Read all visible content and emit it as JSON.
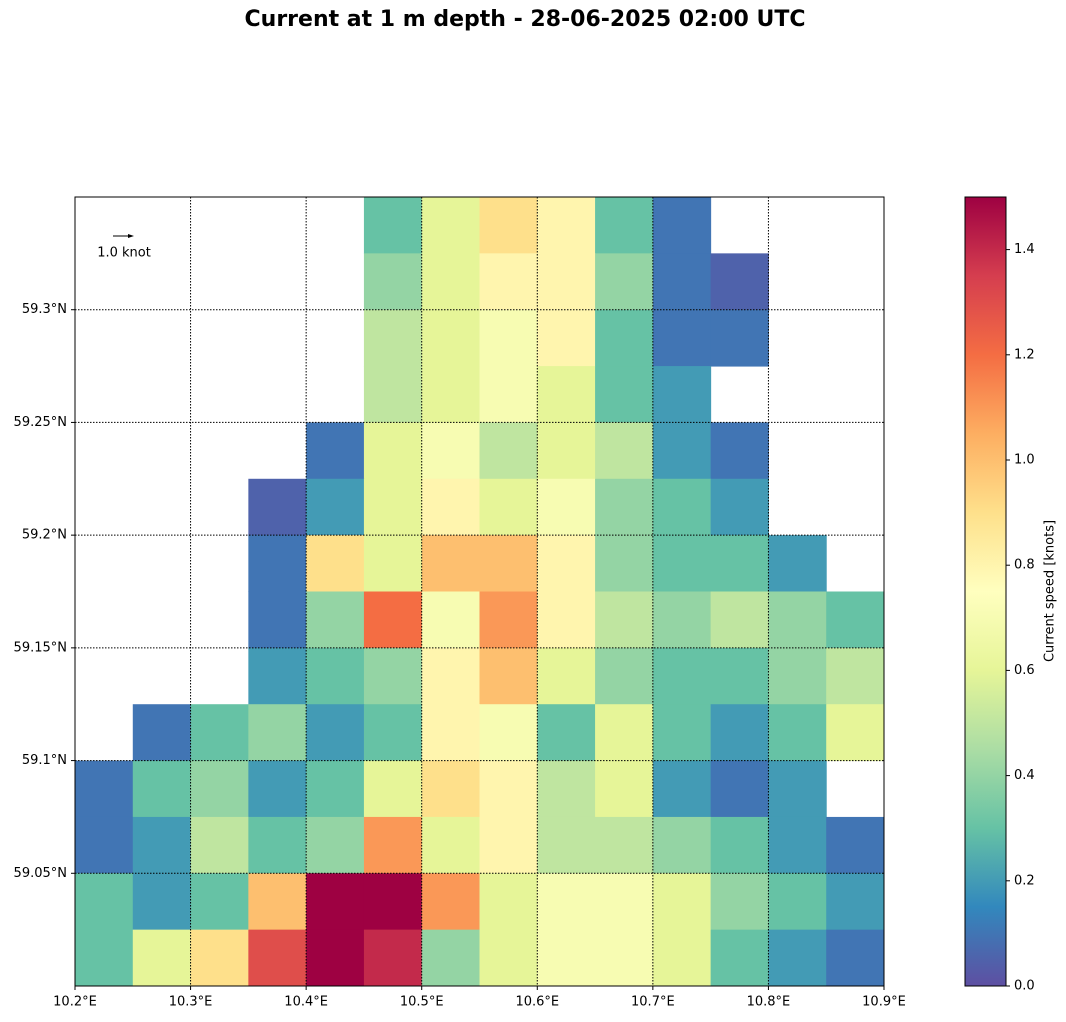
{
  "chart_data": {
    "type": "heatmap",
    "title": "Current at 1 m depth - 28-06-2025 02:00 UTC",
    "colorbar_label": "Current speed [knots]",
    "quiver_key": "1.0 knot",
    "x": [
      10.2,
      10.25,
      10.3,
      10.35,
      10.4,
      10.45,
      10.5,
      10.55,
      10.6,
      10.65,
      10.7,
      10.75,
      10.8,
      10.85
    ],
    "y": [
      59.325,
      59.3,
      59.275,
      59.25,
      59.225,
      59.2,
      59.175,
      59.15,
      59.125,
      59.1,
      59.075,
      59.05,
      59.025,
      59.0
    ],
    "values": [
      [
        null,
        null,
        null,
        null,
        null,
        0.3,
        0.6,
        0.9,
        0.8,
        0.3,
        0.1,
        null,
        null,
        null
      ],
      [
        null,
        null,
        null,
        null,
        null,
        0.4,
        0.6,
        0.8,
        0.8,
        0.4,
        0.1,
        0.05,
        null,
        null
      ],
      [
        null,
        null,
        null,
        null,
        null,
        0.5,
        0.6,
        0.7,
        0.8,
        0.3,
        0.1,
        0.1,
        null,
        null
      ],
      [
        null,
        null,
        null,
        null,
        null,
        0.5,
        0.6,
        0.7,
        0.6,
        0.3,
        0.2,
        null,
        null,
        null
      ],
      [
        null,
        null,
        null,
        null,
        0.1,
        0.6,
        0.7,
        0.5,
        0.6,
        0.5,
        0.2,
        0.1,
        null,
        null
      ],
      [
        null,
        null,
        null,
        0.05,
        0.2,
        0.6,
        0.8,
        0.6,
        0.7,
        0.4,
        0.3,
        0.2,
        null,
        null
      ],
      [
        null,
        null,
        null,
        0.1,
        0.9,
        0.6,
        1.0,
        1.0,
        0.8,
        0.4,
        0.3,
        0.3,
        0.2,
        null
      ],
      [
        null,
        null,
        null,
        0.1,
        0.4,
        1.2,
        0.7,
        1.1,
        0.8,
        0.5,
        0.4,
        0.5,
        0.4,
        0.3
      ],
      [
        null,
        null,
        null,
        0.2,
        0.3,
        0.4,
        0.8,
        1.0,
        0.6,
        0.4,
        0.3,
        0.3,
        0.4,
        0.5
      ],
      [
        null,
        0.1,
        0.3,
        0.4,
        0.2,
        0.3,
        0.8,
        0.7,
        0.3,
        0.6,
        0.3,
        0.2,
        0.3,
        0.6
      ],
      [
        0.1,
        0.3,
        0.4,
        0.2,
        0.3,
        0.6,
        0.9,
        0.8,
        0.5,
        0.6,
        0.2,
        0.1,
        0.2,
        null
      ],
      [
        0.1,
        0.2,
        0.5,
        0.3,
        0.4,
        1.1,
        0.6,
        0.8,
        0.5,
        0.5,
        0.4,
        0.3,
        0.2,
        0.1
      ],
      [
        0.3,
        0.2,
        0.3,
        1.0,
        1.5,
        1.5,
        1.1,
        0.6,
        0.7,
        0.7,
        0.6,
        0.4,
        0.3,
        0.2
      ],
      [
        0.3,
        0.6,
        0.9,
        1.3,
        1.5,
        1.4,
        0.4,
        0.6,
        0.7,
        0.7,
        0.6,
        0.3,
        0.2,
        0.1
      ]
    ],
    "colormap": [
      "#5e4fa2",
      "#3288bd",
      "#66c2a5",
      "#abdda4",
      "#e6f598",
      "#ffffbf",
      "#fee08b",
      "#fdae61",
      "#f46d43",
      "#d53e4f",
      "#9e0142"
    ],
    "xlim": [
      10.2,
      10.9
    ],
    "ylim": [
      59.0,
      59.35
    ],
    "xticks": [
      {
        "value": 10.2,
        "label": "10.2°E"
      },
      {
        "value": 10.3,
        "label": "10.3°E"
      },
      {
        "value": 10.4,
        "label": "10.4°E"
      },
      {
        "value": 10.5,
        "label": "10.5°E"
      },
      {
        "value": 10.6,
        "label": "10.6°E"
      },
      {
        "value": 10.7,
        "label": "10.7°E"
      },
      {
        "value": 10.8,
        "label": "10.8°E"
      },
      {
        "value": 10.9,
        "label": "10.9°E"
      }
    ],
    "yticks": [
      {
        "value": 59.05,
        "label": "59.05°N"
      },
      {
        "value": 59.1,
        "label": "59.1°N"
      },
      {
        "value": 59.15,
        "label": "59.15°N"
      },
      {
        "value": 59.2,
        "label": "59.2°N"
      },
      {
        "value": 59.25,
        "label": "59.25°N"
      },
      {
        "value": 59.3,
        "label": "59.3°N"
      }
    ],
    "clim": [
      0,
      1.5
    ],
    "cticks": [
      {
        "value": 0,
        "label": "0.0"
      },
      0.2,
      0.4,
      0.6,
      0.8,
      {
        "value": 1,
        "label": "1.0"
      },
      1.2,
      1.4
    ],
    "grid": true
  }
}
